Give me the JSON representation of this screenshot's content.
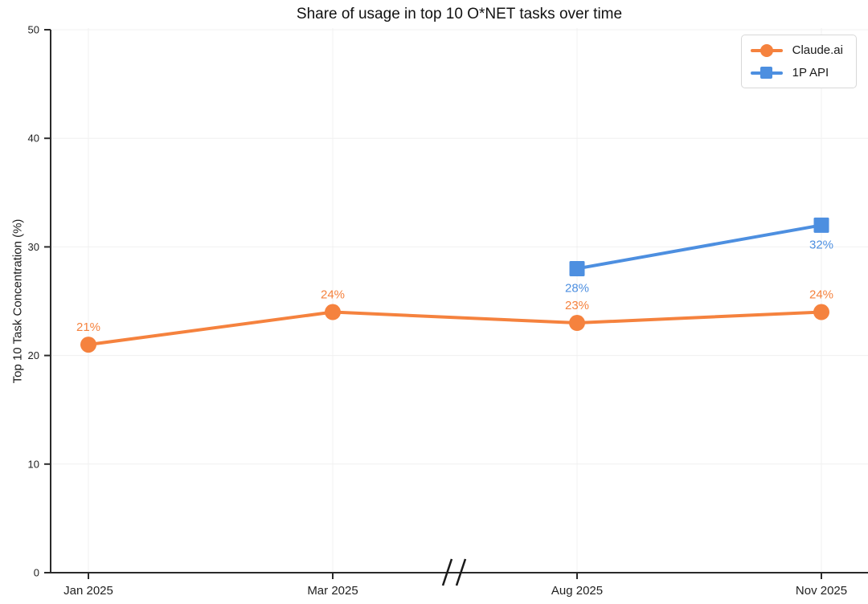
{
  "chart_data": {
    "type": "line",
    "title": "Share of usage in top 10 O*NET tasks over time",
    "xlabel": "",
    "ylabel": "Top 10 Task Concentration (%)",
    "categories": [
      "Jan 2025",
      "Mar 2025",
      "Aug 2025",
      "Nov 2025"
    ],
    "series": [
      {
        "name": "Claude.ai",
        "color": "#F5823E",
        "marker": "circle",
        "values": [
          21,
          24,
          23,
          24
        ],
        "data_labels": [
          "21%",
          "24%",
          "23%",
          "24%"
        ],
        "label_position": "above"
      },
      {
        "name": "1P API",
        "color": "#4D8FE0",
        "marker": "square",
        "values": [
          null,
          null,
          28,
          32
        ],
        "data_labels": [
          null,
          null,
          "28%",
          "32%"
        ],
        "label_position": "below"
      }
    ],
    "value_suffix": "%",
    "ylim": [
      0,
      50
    ],
    "yticks": [
      0,
      10,
      20,
      30,
      40,
      50
    ],
    "axis_break_between": [
      "Mar 2025",
      "Aug 2025"
    ],
    "grid": true,
    "legend_position": "top-right",
    "style": {
      "grid_color": "#f0f0f0",
      "axis_color": "#2b2b2b",
      "tick_label_color": "#1f1f1f"
    }
  }
}
